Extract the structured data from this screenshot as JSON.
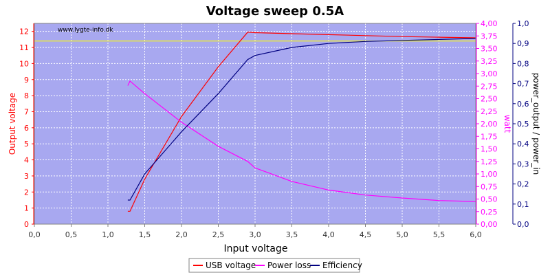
{
  "chart_data": {
    "type": "line",
    "title": "Voltage sweep 0.5A",
    "watermark": "www.lygte-info.dk",
    "xlabel": "Input voltage",
    "xlim": [
      0,
      6
    ],
    "x_ticks": [
      "0,0",
      "0,5",
      "1,0",
      "1,5",
      "2,0",
      "2,5",
      "3,0",
      "3,5",
      "4,0",
      "4,5",
      "5,0",
      "5,5",
      "6,0"
    ],
    "reference_line_y_left": 11.4,
    "axes": {
      "left": {
        "label": "Output voltage",
        "color": "#ff0000",
        "ylim": [
          0,
          12.5
        ],
        "ticks": [
          "0",
          "1",
          "2",
          "3",
          "4",
          "5",
          "6",
          "7",
          "8",
          "9",
          "10",
          "11",
          "12"
        ]
      },
      "right1": {
        "label": "watt",
        "color": "#ff00ff",
        "ylim": [
          0,
          4
        ],
        "ticks": [
          "0,00",
          "0,25",
          "0,50",
          "0,75",
          "1,00",
          "1,25",
          "1,50",
          "1,75",
          "2,00",
          "2,25",
          "2,50",
          "2,75",
          "3,00",
          "3,25",
          "3,50",
          "3,75",
          "4,00"
        ]
      },
      "right2": {
        "label": "power_output / power_in",
        "color": "#000080",
        "ylim": [
          0,
          1
        ],
        "ticks": [
          "0,0",
          "0,1",
          "0,2",
          "0,3",
          "0,4",
          "0,5",
          "0,6",
          "0,7",
          "0,8",
          "0,9",
          "1,0"
        ]
      }
    },
    "series": [
      {
        "name": "USB voltage",
        "axis": "left",
        "color": "#ff0000",
        "x": [
          1.27,
          1.3,
          1.5,
          2.0,
          2.5,
          2.9,
          3.0,
          3.5,
          4.0,
          4.5,
          5.0,
          5.5,
          6.0
        ],
        "y": [
          0.8,
          0.8,
          2.8,
          6.7,
          9.8,
          11.95,
          11.92,
          11.86,
          11.8,
          11.74,
          11.68,
          11.64,
          11.6
        ]
      },
      {
        "name": "Power loss",
        "axis": "right1",
        "color": "#ff00ff",
        "x": [
          1.27,
          1.3,
          1.5,
          2.0,
          2.5,
          2.9,
          3.0,
          3.5,
          4.0,
          4.5,
          5.0,
          5.5,
          6.0
        ],
        "y": [
          2.76,
          2.85,
          2.6,
          2.03,
          1.55,
          1.25,
          1.12,
          0.85,
          0.68,
          0.58,
          0.52,
          0.47,
          0.45
        ]
      },
      {
        "name": "Efficiency",
        "axis": "right2",
        "color": "#000080",
        "x": [
          1.27,
          1.3,
          1.5,
          2.0,
          2.5,
          2.9,
          3.0,
          3.5,
          4.0,
          4.5,
          5.0,
          5.5,
          6.0
        ],
        "y": [
          0.12,
          0.12,
          0.25,
          0.46,
          0.65,
          0.82,
          0.84,
          0.88,
          0.9,
          0.91,
          0.915,
          0.92,
          0.925
        ]
      }
    ],
    "grid": true,
    "legend_position": "bottom-center",
    "colors": {
      "plot_background": "#a8a8f0",
      "grid": "#ffffff",
      "reference_line": "#ffff00"
    }
  }
}
